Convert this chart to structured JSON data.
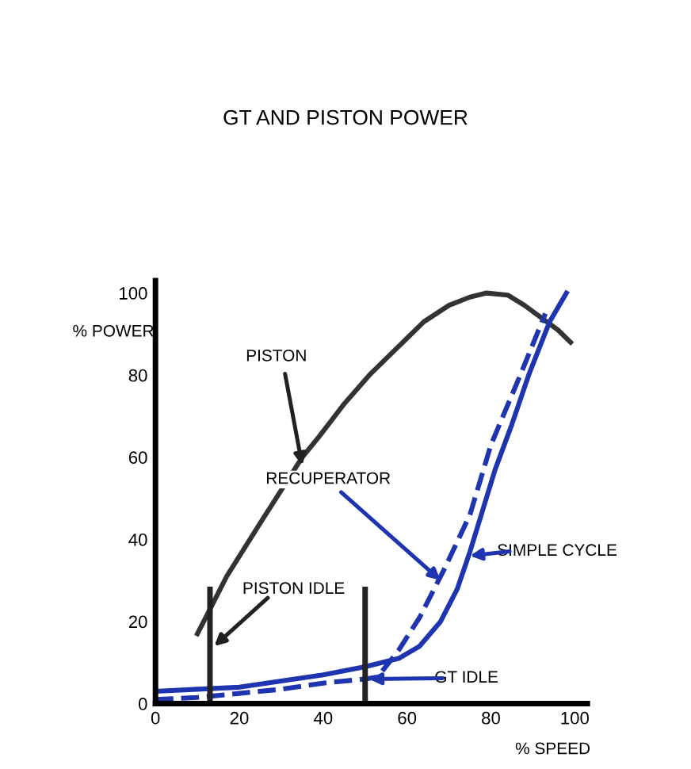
{
  "chart_data": {
    "type": "line",
    "title": "GT AND PISTON POWER",
    "xlabel": "% SPEED",
    "ylabel": "% POWER",
    "xlim": [
      0,
      103
    ],
    "ylim": [
      0,
      103
    ],
    "xticks": [
      0,
      20,
      40,
      60,
      80,
      100
    ],
    "yticks": [
      0,
      20,
      40,
      60,
      80,
      100
    ],
    "grid": false,
    "marker": "none",
    "series": [
      {
        "color": "#333333",
        "line_style": "solid",
        "x": [
          10,
          17,
          25,
          35,
          39,
          45,
          51,
          58,
          64,
          70,
          75,
          79,
          84,
          88,
          92,
          96,
          99
        ],
        "values": [
          17,
          31,
          44,
          60,
          65,
          73,
          80,
          87,
          93,
          97,
          99,
          100,
          99.5,
          97,
          94,
          91,
          88
        ]
      },
      {
        "color": "#1f35b0",
        "line_style": "solid",
        "x": [
          0,
          10,
          20,
          30,
          40,
          50,
          54,
          58,
          63,
          68,
          72,
          75,
          78,
          81,
          85,
          89,
          94,
          98
        ],
        "values": [
          3,
          3.5,
          4,
          5.5,
          7,
          9,
          10,
          11,
          14,
          20,
          28,
          37,
          47,
          57,
          68,
          80,
          93,
          100
        ]
      },
      {
        "color": "#1f35b0",
        "line_style": "dashed",
        "x": [
          0,
          10,
          20,
          30,
          40,
          50,
          53,
          58,
          63,
          69,
          75,
          80,
          87,
          93
        ],
        "values": [
          1,
          1.5,
          2.5,
          3.5,
          5,
          6,
          6.5,
          13,
          21,
          33,
          46,
          63,
          80,
          95
        ]
      }
    ],
    "ref_lines": [
      {
        "axis": "x",
        "value": 13,
        "color": "#222222"
      },
      {
        "axis": "x",
        "value": 50,
        "color": "#222222"
      }
    ],
    "annotations": [
      {
        "text": "PISTON",
        "x": 35,
        "y": 58
      },
      {
        "text": "RECUPERATOR",
        "x": 68,
        "y": 30
      },
      {
        "text": "SIMPLE CYCLE",
        "x": 75,
        "y": 36
      },
      {
        "text": "PISTON IDLE",
        "x": 14,
        "y": 14
      },
      {
        "text": "GT IDLE",
        "x": 51,
        "y": 6
      }
    ]
  }
}
